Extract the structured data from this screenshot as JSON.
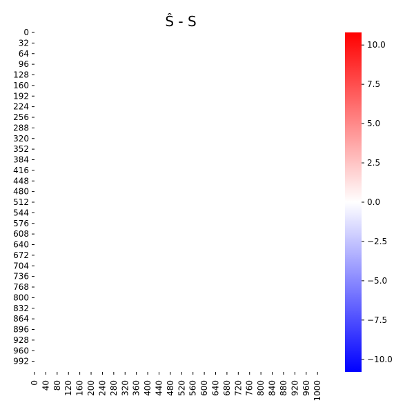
{
  "chart_data": {
    "type": "heatmap",
    "title": "Ŝ - S",
    "xlabel": "",
    "ylabel": "",
    "x_tick_labels": [
      "0",
      "40",
      "80",
      "120",
      "160",
      "200",
      "240",
      "280",
      "320",
      "360",
      "400",
      "440",
      "480",
      "520",
      "560",
      "600",
      "640",
      "680",
      "720",
      "760",
      "800",
      "840",
      "880",
      "920",
      "960",
      "1000"
    ],
    "y_tick_labels": [
      "0",
      "32",
      "64",
      "96",
      "128",
      "160",
      "192",
      "224",
      "256",
      "288",
      "320",
      "352",
      "384",
      "416",
      "448",
      "480",
      "512",
      "544",
      "576",
      "608",
      "640",
      "672",
      "704",
      "736",
      "768",
      "800",
      "832",
      "864",
      "896",
      "928",
      "960",
      "992"
    ],
    "x_range": [
      0,
      1024
    ],
    "y_range": [
      0,
      1024
    ],
    "values": "all approximately 0 (uniform white field)",
    "colorbar": {
      "colormap": "bwr",
      "range": [
        -10.8,
        10.8
      ],
      "ticks": [
        10.0,
        7.5,
        5.0,
        2.5,
        0.0,
        -2.5,
        -5.0,
        -7.5,
        -10.0
      ],
      "tick_labels": [
        "10.0",
        "7.5",
        "5.0",
        "2.5",
        "0.0",
        "−2.5",
        "−5.0",
        "−7.5",
        "−10.0"
      ],
      "colors": {
        "min": "#0000ff",
        "mid": "#ffffff",
        "max": "#ff0000"
      }
    },
    "grid": false,
    "legend": "none"
  }
}
